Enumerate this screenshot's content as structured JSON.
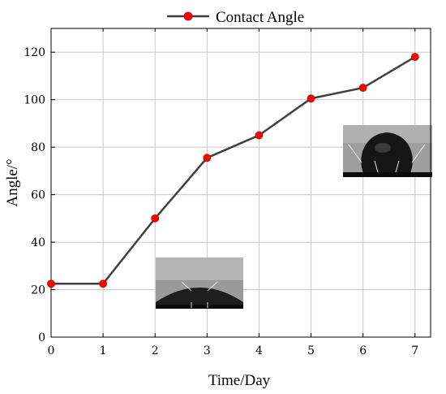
{
  "chart_data": {
    "type": "line",
    "title": "",
    "xlabel": "Time/Day",
    "ylabel": "Angle/°",
    "xlim": [
      0,
      7.3
    ],
    "ylim": [
      0,
      130
    ],
    "x_ticks": [
      0,
      1,
      2,
      3,
      4,
      5,
      6,
      7
    ],
    "y_ticks": [
      0,
      20,
      40,
      60,
      80,
      100,
      120
    ],
    "grid": true,
    "legend_position": "top-center",
    "series": [
      {
        "name": "Contact Angle",
        "x": [
          0,
          1,
          2,
          3,
          4,
          5,
          6,
          7
        ],
        "y": [
          22.5,
          22.5,
          50,
          75.5,
          85,
          100.5,
          105,
          118
        ],
        "line_color": "#404040",
        "marker_color": "#ff0000"
      }
    ],
    "insets": [
      "droplet-low-angle-photo",
      "droplet-high-angle-photo"
    ]
  }
}
